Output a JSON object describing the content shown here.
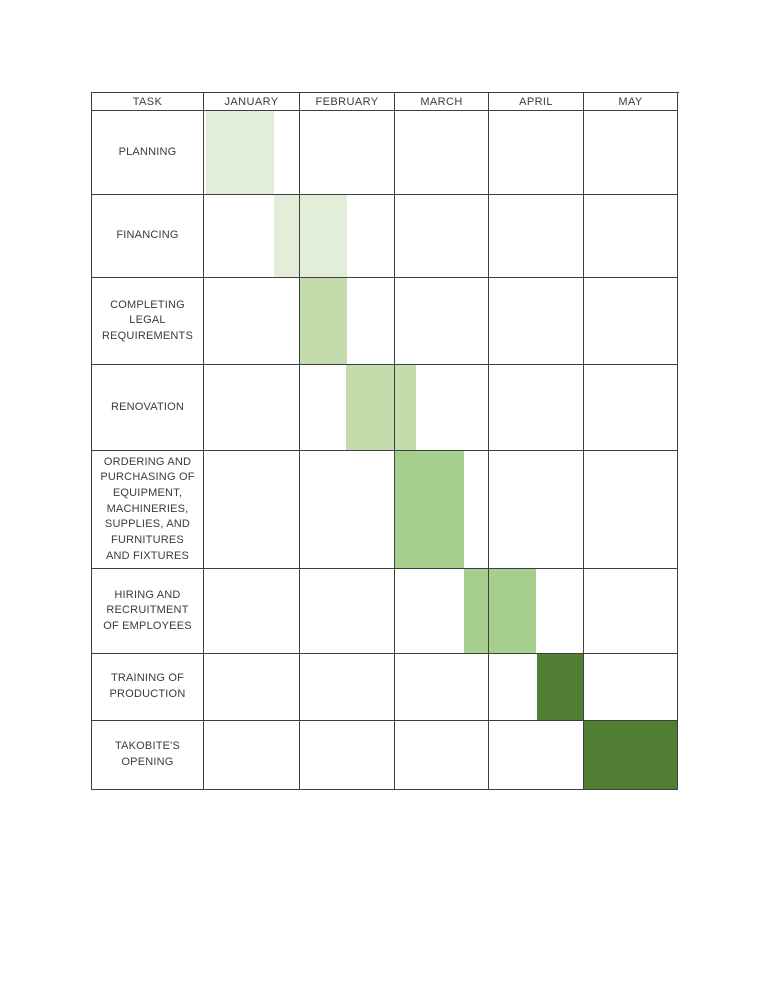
{
  "page": {
    "background_color": "#ffffff"
  },
  "table": {
    "header": {
      "task_label": "TASK",
      "month_labels": [
        "JANUARY",
        "FEBRUARY",
        "MARCH",
        "APRIL",
        "MAY"
      ]
    }
  },
  "chart_data": {
    "type": "bar",
    "variant": "gantt-table",
    "title": "",
    "columns": [
      "TASK",
      "JANUARY",
      "FEBRUARY",
      "MARCH",
      "APRIL",
      "MAY"
    ],
    "x_unit": "month-fraction (0 = start of January, 5 = end of May)",
    "x_range": [
      0,
      5
    ],
    "grid": true,
    "palette": {
      "lightest_green": "#e2eed8",
      "light_green": "#c4dcab",
      "medium_green": "#a6cf8d",
      "dark_green": "#507f34",
      "border": "#3f3f3f",
      "text": "#3b3b3b"
    },
    "tasks": [
      {
        "id": "planning",
        "label": "PLANNING",
        "start_month": 0.02,
        "end_month": 0.73,
        "months": "early January to late January",
        "color": "#e2eed8"
      },
      {
        "id": "financing",
        "label": "FINANCING",
        "start_month": 0.73,
        "end_month": 1.49,
        "months": "late January to mid February",
        "color": "#e2eed8"
      },
      {
        "id": "completing-legal-requirements",
        "label": "COMPLETING\nLEGAL\nREQUIREMENTS",
        "start_month": 1.0,
        "end_month": 1.49,
        "months": "early February to mid February",
        "color": "#c4dcab"
      },
      {
        "id": "renovation",
        "label": "RENOVATION",
        "start_month": 1.48,
        "end_month": 2.22,
        "months": "mid February to early March",
        "color": "#c4dcab"
      },
      {
        "id": "ordering-and-purchasing",
        "label": "ORDERING AND\nPURCHASING OF\nEQUIPMENT,\nMACHINERIES,\nSUPPLIES, AND\nFURNITURES\nAND FIXTURES",
        "start_month": 2.0,
        "end_month": 2.73,
        "months": "early March to late March",
        "color": "#a6cf8d"
      },
      {
        "id": "hiring-and-recruitment",
        "label": "HIRING AND\nRECRUITMENT\nOF EMPLOYEES",
        "start_month": 2.73,
        "end_month": 3.49,
        "months": "late March to mid April",
        "color": "#a6cf8d"
      },
      {
        "id": "training-of-production",
        "label": "TRAINING OF\nPRODUCTION",
        "start_month": 3.5,
        "end_month": 4.0,
        "months": "mid April to end of April",
        "color": "#507f34"
      },
      {
        "id": "takobites-opening",
        "label": "TAKOBITE'S\nOPENING",
        "start_month": 4.0,
        "end_month": 5.0,
        "months": "all of May",
        "color": "#507f34"
      }
    ]
  }
}
